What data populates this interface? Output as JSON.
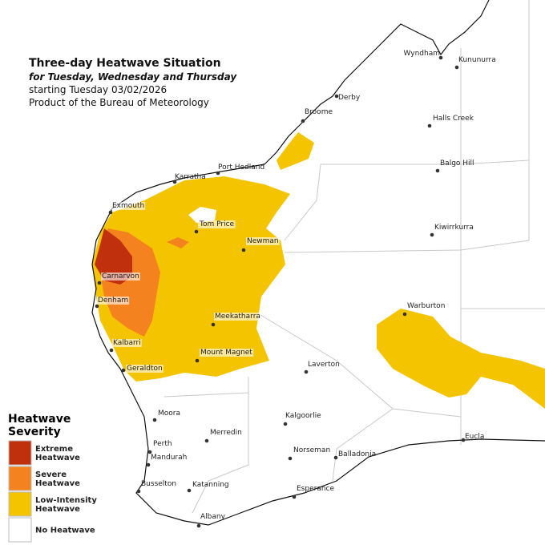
{
  "header": {
    "title": "Three-day Heatwave Situation",
    "subtitle": "for Tuesday, Wednesday and Thursday",
    "starting": "starting Tuesday 03/02/2026",
    "product": "Product of the Bureau of Meteorology"
  },
  "towns": [
    {
      "label": "Wyndham"
    },
    {
      "label": "Kununurra"
    },
    {
      "label": "Derby"
    },
    {
      "label": "Broome"
    },
    {
      "label": "Halls Creek"
    },
    {
      "label": "Balgo Hill"
    },
    {
      "label": "Port Hedland"
    },
    {
      "label": "Karratha"
    },
    {
      "label": "Exmouth"
    },
    {
      "label": "Tom Price"
    },
    {
      "label": "Kiwirrkurra"
    },
    {
      "label": "Newman"
    },
    {
      "label": "Carnarvon"
    },
    {
      "label": "Denham"
    },
    {
      "label": "Warburton"
    },
    {
      "label": "Meekatharra"
    },
    {
      "label": "Kalbarri"
    },
    {
      "label": "Mount Magnet"
    },
    {
      "label": "Laverton"
    },
    {
      "label": "Geraldton"
    },
    {
      "label": "Moora"
    },
    {
      "label": "Kalgoorlie"
    },
    {
      "label": "Merredin"
    },
    {
      "label": "Perth"
    },
    {
      "label": "Mandurah"
    },
    {
      "label": "Norseman"
    },
    {
      "label": "Balladonia"
    },
    {
      "label": "Eucla"
    },
    {
      "label": "Busselton"
    },
    {
      "label": "Katanning"
    },
    {
      "label": "Esperance"
    },
    {
      "label": "Albany"
    }
  ],
  "legend": {
    "title": [
      "Heatwave",
      "Severity"
    ],
    "items": [
      {
        "lines": [
          "Extreme",
          "Heatwave"
        ]
      },
      {
        "lines": [
          "Severe",
          "Heatwave"
        ]
      },
      {
        "lines": [
          "Low-Intensity",
          "Heatwave"
        ]
      },
      {
        "lines": [
          "No Heatwave"
        ]
      }
    ]
  }
}
